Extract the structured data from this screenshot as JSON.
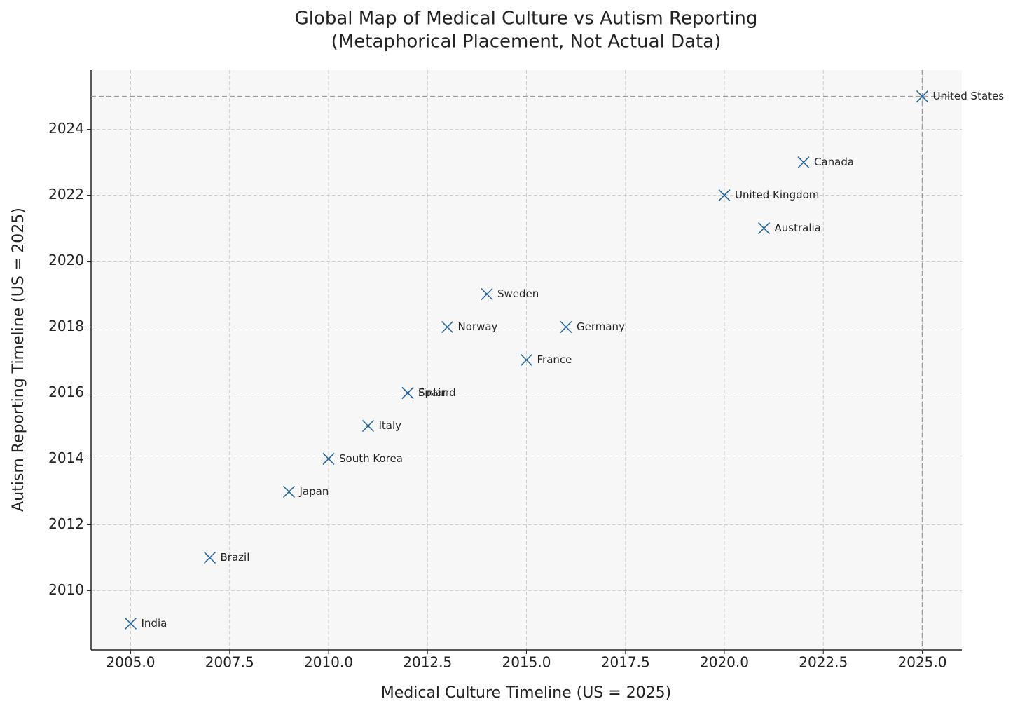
{
  "chart_data": {
    "type": "scatter",
    "title": "Global Map of Medical Culture vs Autism Reporting",
    "subtitle": "(Metaphorical Placement, Not Actual Data)",
    "x_label": "Medical Culture Timeline (US = 2025)",
    "y_label": "Autism Reporting Timeline (US = 2025)",
    "series": [
      {
        "color": "#1f63a3",
        "labels": [
          "United States",
          "Canada",
          "United Kingdom",
          "Australia",
          "Sweden",
          "Norway",
          "Germany",
          "France",
          "Finland",
          "Spain",
          "Italy",
          "South Korea",
          "Japan",
          "Brazil",
          "India"
        ],
        "x": [
          2025,
          2022,
          2020,
          2021,
          2014,
          2013,
          2016,
          2015,
          2012,
          2012,
          2011,
          2010,
          2009,
          2007,
          2005
        ],
        "values": [
          2025,
          2023,
          2022,
          2021,
          2019,
          2018,
          2018,
          2017,
          2016,
          2016,
          2015,
          2014,
          2013,
          2011,
          2009
        ]
      }
    ],
    "reference_x": 2025,
    "reference_y": 2025,
    "xlim": [
      2004.0,
      2026.0
    ],
    "ylim": [
      2008.2,
      2025.8
    ],
    "xticks": [
      {
        "value": 2005,
        "label": "2005.0"
      },
      {
        "value": 2007.5,
        "label": "2007.5"
      },
      {
        "value": 2010,
        "label": "2010.0"
      },
      {
        "value": 2012.5,
        "label": "2012.5"
      },
      {
        "value": 2015,
        "label": "2015.0"
      },
      {
        "value": 2017.5,
        "label": "2017.5"
      },
      {
        "value": 2020,
        "label": "2020.0"
      },
      {
        "value": 2022.5,
        "label": "2022.5"
      },
      {
        "value": 2025,
        "label": "2025.0"
      }
    ],
    "yticks": [
      2010,
      2012,
      2014,
      2016,
      2018,
      2020,
      2022,
      2024
    ],
    "grid": true
  }
}
